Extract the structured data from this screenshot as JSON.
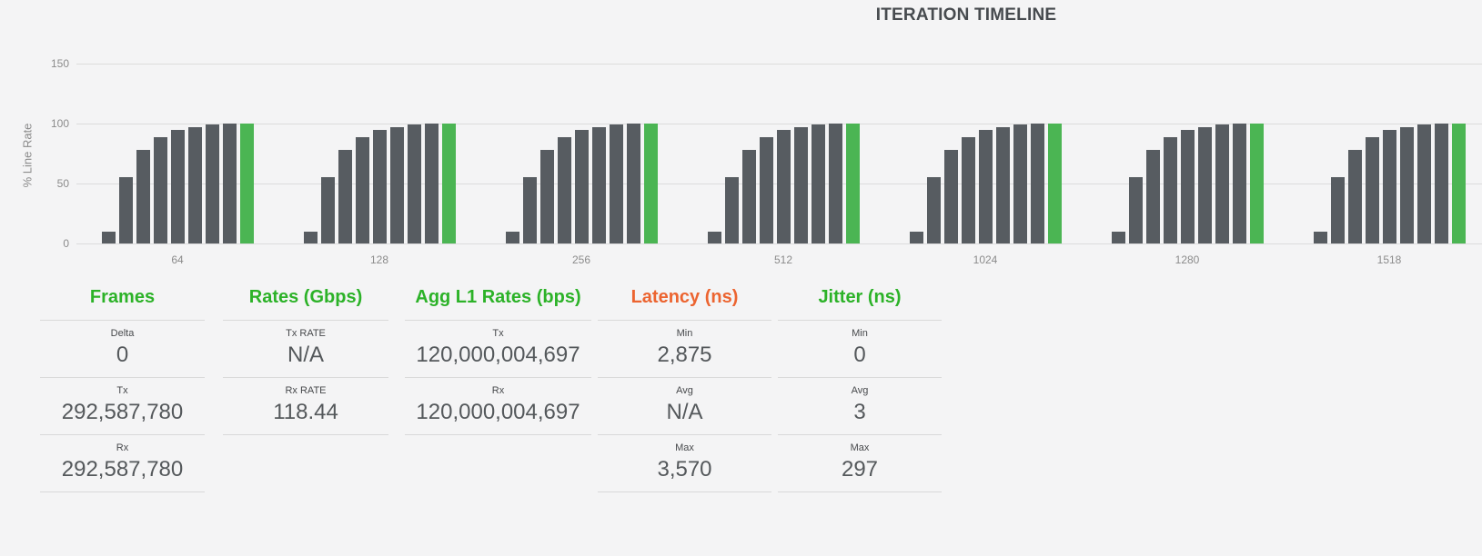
{
  "colors": {
    "background": "#f4f4f5",
    "accent_green": "#2cb228",
    "accent_orange": "#ec6430",
    "bar_gray": "#575c61",
    "bar_green": "#4bb553",
    "title_text": "#474b4f"
  },
  "chart_data": {
    "type": "bar",
    "title": "ITERATION TIMELINE",
    "xlabel": "",
    "ylabel": "% Line Rate",
    "ylim": [
      0,
      150
    ],
    "yticks": [
      0,
      50,
      100,
      150
    ],
    "grid": true,
    "legend": false,
    "categories": [
      "64",
      "128",
      "256",
      "512",
      "1024",
      "1280",
      "1518"
    ],
    "bar_colors": {
      "trial": "#575c61",
      "final": "#4bb553"
    },
    "groups": [
      {
        "category": "64",
        "trial_values": [
          10,
          55,
          78,
          89,
          95,
          97,
          99,
          100
        ],
        "final_value": 100
      },
      {
        "category": "128",
        "trial_values": [
          10,
          55,
          78,
          89,
          95,
          97,
          99,
          100
        ],
        "final_value": 100
      },
      {
        "category": "256",
        "trial_values": [
          10,
          55,
          78,
          89,
          95,
          97,
          99,
          100
        ],
        "final_value": 100
      },
      {
        "category": "512",
        "trial_values": [
          10,
          55,
          78,
          89,
          95,
          97,
          99,
          100
        ],
        "final_value": 100
      },
      {
        "category": "1024",
        "trial_values": [
          10,
          55,
          78,
          89,
          95,
          97,
          99,
          100
        ],
        "final_value": 100
      },
      {
        "category": "1280",
        "trial_values": [
          10,
          55,
          78,
          89,
          95,
          97,
          99,
          100
        ],
        "final_value": 100
      },
      {
        "category": "1518",
        "trial_values": [
          10,
          55,
          78,
          89,
          95,
          97,
          99,
          100
        ],
        "final_value": 100
      }
    ]
  },
  "stats": {
    "panels": [
      {
        "title": "Frames",
        "accent": "#2cb228",
        "rows": [
          {
            "label": "Delta",
            "value": "0"
          },
          {
            "label": "Tx",
            "value": "292,587,780"
          },
          {
            "label": "Rx",
            "value": "292,587,780"
          }
        ]
      },
      {
        "title": "Rates (Gbps)",
        "accent": "#2cb228",
        "rows": [
          {
            "label": "Tx RATE",
            "value": "N/A"
          },
          {
            "label": "Rx RATE",
            "value": "118.44"
          }
        ]
      },
      {
        "title": "Agg L1 Rates (bps)",
        "accent": "#2cb228",
        "rows": [
          {
            "label": "Tx",
            "value": "120,000,004,697"
          },
          {
            "label": "Rx",
            "value": "120,000,004,697"
          }
        ]
      },
      {
        "title": "Latency (ns)",
        "accent": "#ec6430",
        "rows": [
          {
            "label": "Min",
            "value": "2,875"
          },
          {
            "label": "Avg",
            "value": "N/A"
          },
          {
            "label": "Max",
            "value": "3,570"
          }
        ]
      },
      {
        "title": "Jitter (ns)",
        "accent": "#2cb228",
        "rows": [
          {
            "label": "Min",
            "value": "0"
          },
          {
            "label": "Avg",
            "value": "3"
          },
          {
            "label": "Max",
            "value": "297"
          }
        ]
      }
    ]
  }
}
